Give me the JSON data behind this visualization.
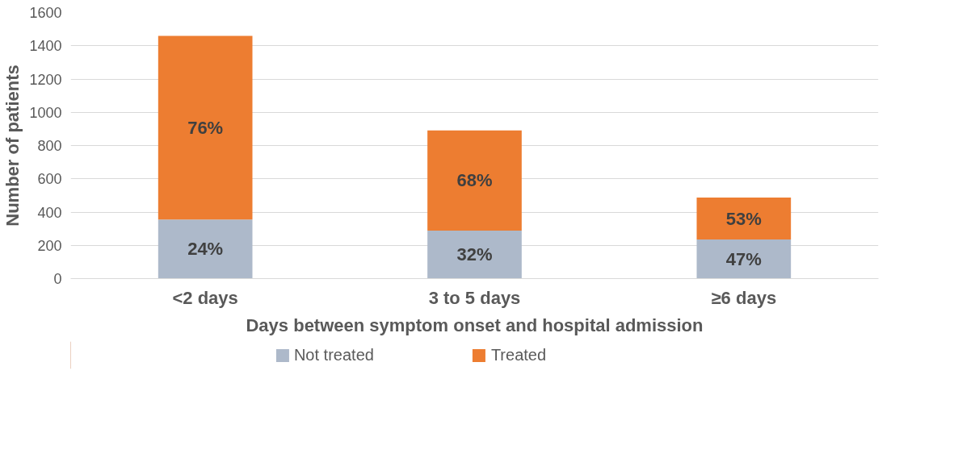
{
  "chart_data": {
    "type": "bar",
    "stacked": true,
    "xlabel": "Days between symptom onset and hospital admission",
    "ylabel": "Number of patients",
    "categories": [
      "<2 days",
      "3 to 5 days",
      "≥6 days"
    ],
    "series": [
      {
        "name": "Not treated",
        "color": "#adb9ca",
        "values": [
          355,
          289,
          235
        ]
      },
      {
        "name": "Treated",
        "color": "#ed7d31",
        "values": [
          1105,
          602,
          252
        ]
      }
    ],
    "annotations": [
      "24%",
      "32%",
      "47%",
      "76%",
      "68%",
      "53%"
    ],
    "ylim": [
      0,
      1600
    ],
    "yticks": [
      0,
      200,
      400,
      600,
      800,
      1000,
      1200,
      1400,
      1600
    ],
    "grid": "y",
    "legend": "bottom"
  }
}
